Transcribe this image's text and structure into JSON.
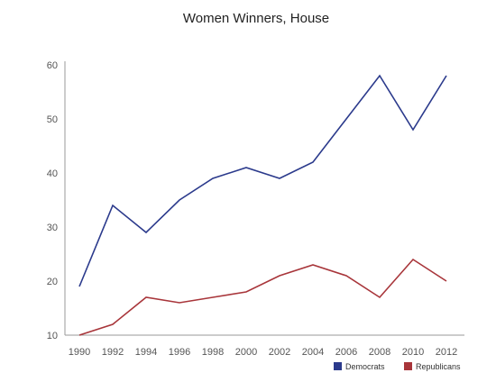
{
  "chart_data": {
    "type": "line",
    "title": "Women Winners, House",
    "xlabel": "",
    "ylabel": "",
    "x": [
      "1990",
      "1992",
      "1994",
      "1996",
      "1998",
      "2000",
      "2002",
      "2004",
      "2006",
      "2008",
      "2010",
      "2012"
    ],
    "ylim": [
      10,
      60
    ],
    "yticks": [
      10,
      20,
      30,
      40,
      50,
      60
    ],
    "grid": false,
    "legend": "bottom-right",
    "series": [
      {
        "name": "Democrats",
        "color": "#2b3a8c",
        "values": [
          19,
          34,
          29,
          35,
          39,
          41,
          39,
          42,
          50,
          58,
          48,
          58
        ]
      },
      {
        "name": "Republicans",
        "color": "#a8353a",
        "values": [
          10,
          12,
          17,
          16,
          17,
          18,
          21,
          23,
          21,
          17,
          24,
          20
        ]
      }
    ]
  }
}
